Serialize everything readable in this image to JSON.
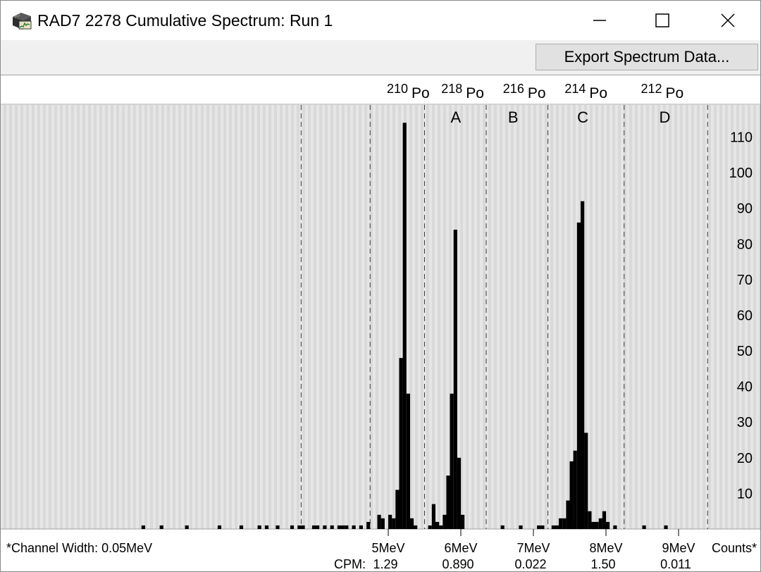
{
  "window": {
    "title": "RAD7 2278 Cumulative Spectrum: Run 1",
    "controls": [
      "minimize",
      "maximize",
      "close"
    ]
  },
  "toolbar": {
    "export_label": "Export Spectrum Data..."
  },
  "chart_data": {
    "type": "bar",
    "title": "",
    "x_unit": "MeV",
    "channel_width_note": "*Channel Width: 0.05MeV",
    "y_axis_label": "Counts*",
    "ylim": [
      0,
      119
    ],
    "y_ticks": [
      10,
      20,
      30,
      40,
      50,
      60,
      70,
      80,
      90,
      100,
      110
    ],
    "x_ticks": [
      {
        "value": 5,
        "label": "5MeV"
      },
      {
        "value": 6,
        "label": "6MeV"
      },
      {
        "value": 7,
        "label": "7MeV"
      },
      {
        "value": 8,
        "label": "8MeV"
      },
      {
        "value": 9,
        "label": "9MeV"
      }
    ],
    "cpm_label": "CPM:",
    "cpm_values": [
      {
        "at": 5.0,
        "label": "1.29"
      },
      {
        "at": 6.0,
        "label": "0.890"
      },
      {
        "at": 7.0,
        "label": "0.022"
      },
      {
        "at": 8.0,
        "label": "1.50"
      },
      {
        "at": 9.0,
        "label": "0.011"
      }
    ],
    "isotopes": [
      {
        "mass": "210",
        "element": "Po",
        "at": 5.35
      },
      {
        "mass": "218",
        "element": "Po",
        "at": 6.1
      },
      {
        "mass": "216",
        "element": "Po",
        "at": 6.95
      },
      {
        "mass": "214",
        "element": "Po",
        "at": 7.8
      },
      {
        "mass": "212",
        "element": "Po",
        "at": 8.85
      }
    ],
    "windows": [
      {
        "label": "A",
        "at": 5.93
      },
      {
        "label": "B",
        "at": 6.72
      },
      {
        "label": "C",
        "at": 7.68
      },
      {
        "label": "D",
        "at": 8.81
      }
    ],
    "boundaries": [
      3.8,
      4.75,
      5.5,
      6.35,
      7.2,
      8.25,
      9.4
    ],
    "channels": [
      [
        1.6,
        1
      ],
      [
        1.85,
        1
      ],
      [
        2.2,
        1
      ],
      [
        2.65,
        1
      ],
      [
        2.95,
        1
      ],
      [
        3.2,
        1
      ],
      [
        3.3,
        1
      ],
      [
        3.45,
        1
      ],
      [
        3.65,
        1
      ],
      [
        3.75,
        1
      ],
      [
        3.8,
        1
      ],
      [
        3.95,
        1
      ],
      [
        4.0,
        1
      ],
      [
        4.1,
        1
      ],
      [
        4.2,
        1
      ],
      [
        4.3,
        1
      ],
      [
        4.35,
        1
      ],
      [
        4.4,
        1
      ],
      [
        4.5,
        1
      ],
      [
        4.6,
        1
      ],
      [
        4.7,
        2
      ],
      [
        4.85,
        4
      ],
      [
        4.9,
        3
      ],
      [
        5.0,
        4
      ],
      [
        5.05,
        3
      ],
      [
        5.1,
        11
      ],
      [
        5.15,
        48
      ],
      [
        5.2,
        114
      ],
      [
        5.25,
        38
      ],
      [
        5.3,
        3
      ],
      [
        5.35,
        1
      ],
      [
        5.55,
        1
      ],
      [
        5.6,
        7
      ],
      [
        5.65,
        2
      ],
      [
        5.7,
        1
      ],
      [
        5.75,
        4
      ],
      [
        5.8,
        15
      ],
      [
        5.85,
        38
      ],
      [
        5.9,
        84
      ],
      [
        5.95,
        20
      ],
      [
        6.0,
        4
      ],
      [
        6.55,
        1
      ],
      [
        6.8,
        1
      ],
      [
        7.05,
        1
      ],
      [
        7.1,
        1
      ],
      [
        7.25,
        1
      ],
      [
        7.3,
        1
      ],
      [
        7.35,
        3
      ],
      [
        7.4,
        3
      ],
      [
        7.45,
        8
      ],
      [
        7.5,
        19
      ],
      [
        7.55,
        22
      ],
      [
        7.6,
        86
      ],
      [
        7.65,
        92
      ],
      [
        7.7,
        27
      ],
      [
        7.75,
        5
      ],
      [
        7.8,
        2
      ],
      [
        7.85,
        2
      ],
      [
        7.9,
        3
      ],
      [
        7.95,
        5
      ],
      [
        8.0,
        2
      ],
      [
        8.1,
        1
      ],
      [
        8.5,
        1
      ],
      [
        8.8,
        1
      ]
    ]
  }
}
